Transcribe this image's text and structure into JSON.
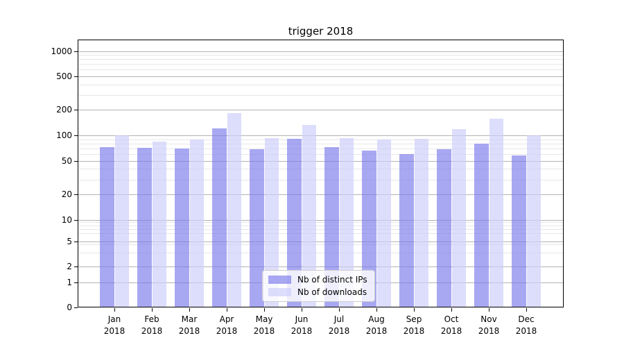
{
  "figure": {
    "title": "trigger 2018",
    "background_color": "#ffffff",
    "axis_color": "#000000"
  },
  "chart_data": {
    "type": "bar",
    "title": "trigger 2018",
    "xlabel": "",
    "ylabel": "",
    "yscale": "symlog",
    "yticks": [
      0,
      1,
      2,
      5,
      10,
      20,
      50,
      100,
      200,
      500,
      1000
    ],
    "minor_grid_values": [
      3,
      4,
      6,
      7,
      8,
      9,
      30,
      40,
      60,
      70,
      80,
      90,
      300,
      400,
      600,
      700,
      800,
      900
    ],
    "ylim": [
      0,
      1350
    ],
    "grid": {
      "major": true,
      "minor": true
    },
    "legend_position": "lower center",
    "months": [
      "Jan",
      "Feb",
      "Mar",
      "Apr",
      "May",
      "Jun",
      "Jul",
      "Aug",
      "Sep",
      "Oct",
      "Nov",
      "Dec"
    ],
    "year": "2018",
    "series": [
      {
        "name": "Nb of distinct IPs",
        "color": "rgba(122,122,235,0.65)",
        "values": [
          73,
          71,
          70,
          120,
          68,
          91,
          73,
          66,
          60,
          68,
          79,
          58
        ]
      },
      {
        "name": "Nb of downloads",
        "color": "rgba(205,205,250,0.68)",
        "values": [
          100,
          85,
          90,
          185,
          92,
          133,
          92,
          90,
          91,
          118,
          157,
          100
        ]
      }
    ],
    "style": {
      "grid_major_color": "#b3b3b3",
      "grid_minor_color": "#e7e7e7"
    }
  }
}
